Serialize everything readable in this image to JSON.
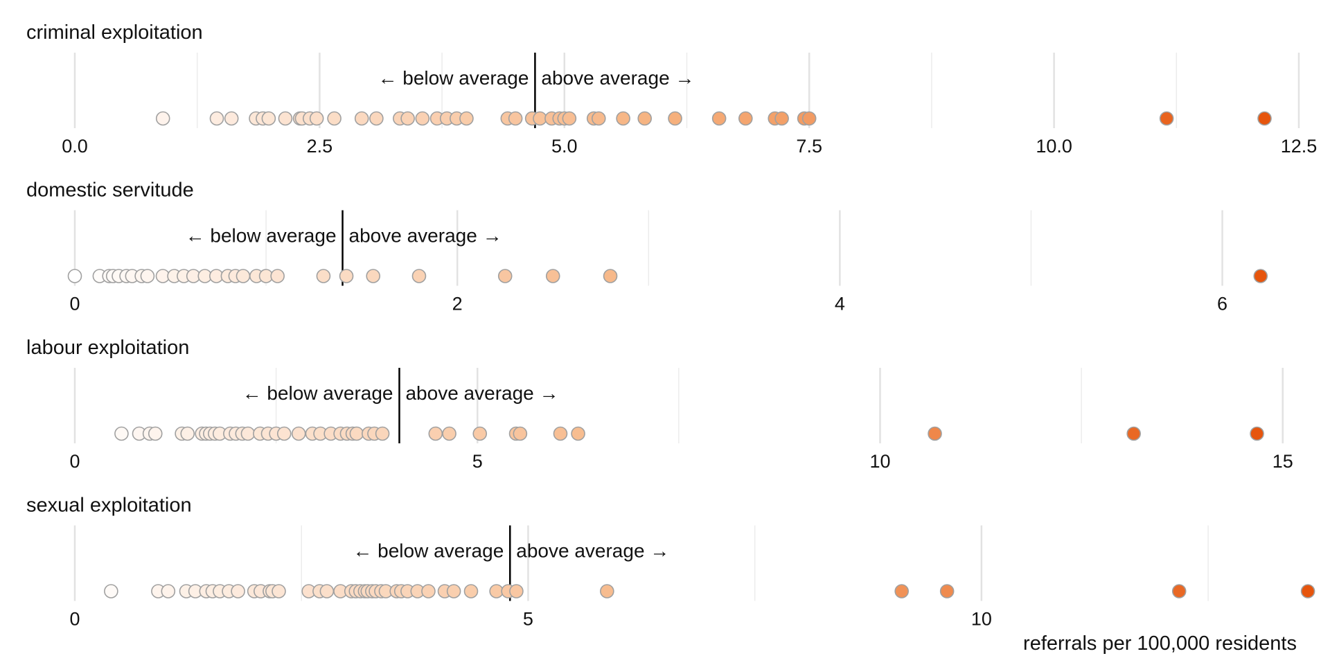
{
  "chart_data": {
    "type": "scatter",
    "orientation": "horizontal strip (dot) plots, one per exploitation type",
    "xlabel": "referrals per 100,000 residents",
    "below_label": "← below average",
    "above_label": "above average →",
    "color_scale": {
      "low": "#ffffff",
      "mid": "#f6b17d",
      "high": "#e6550d"
    },
    "marker_edge_color": "#a0a0a0",
    "grid": true,
    "panels": [
      {
        "title": "criminal exploitation",
        "xlim": [
          0,
          12.5
        ],
        "major_ticks": [
          0,
          2.5,
          5,
          7.5,
          10,
          12.5
        ],
        "tick_labels": [
          "0.0",
          "2.5",
          "5.0",
          "7.5",
          "10.0",
          "12.5"
        ],
        "minor_ticks": [
          1.25,
          3.75,
          6.25,
          8.75,
          11.25
        ],
        "average": 4.7,
        "values": [
          0.9,
          1.45,
          1.6,
          1.85,
          1.92,
          1.98,
          2.15,
          2.3,
          2.32,
          2.4,
          2.47,
          2.65,
          2.93,
          3.08,
          3.32,
          3.4,
          3.55,
          3.7,
          3.8,
          3.9,
          4.0,
          4.42,
          4.5,
          4.67,
          4.75,
          4.87,
          4.95,
          5.0,
          5.05,
          5.3,
          5.35,
          5.6,
          5.82,
          6.13,
          6.58,
          6.85,
          7.15,
          7.22,
          7.45,
          7.5,
          11.15,
          12.15
        ]
      },
      {
        "title": "domestic servitude",
        "xlim": [
          0,
          6.4
        ],
        "major_ticks": [
          0,
          2,
          4,
          6
        ],
        "tick_labels": [
          "0",
          "2",
          "4",
          "6"
        ],
        "minor_ticks": [
          1,
          3,
          5
        ],
        "average": 1.4,
        "values": [
          0.0,
          0.13,
          0.18,
          0.2,
          0.23,
          0.27,
          0.3,
          0.35,
          0.38,
          0.46,
          0.52,
          0.57,
          0.62,
          0.68,
          0.74,
          0.8,
          0.84,
          0.88,
          0.95,
          1.0,
          1.06,
          1.3,
          1.42,
          1.56,
          1.8,
          2.25,
          2.5,
          2.8,
          6.2
        ]
      },
      {
        "title": "labour exploitation",
        "xlim": [
          0,
          15.2
        ],
        "major_ticks": [
          0,
          5,
          10,
          15
        ],
        "tick_labels": [
          "0",
          "5",
          "10",
          "15"
        ],
        "minor_ticks": [
          2.5,
          7.5,
          12.5
        ],
        "average": 4.03,
        "values": [
          0.58,
          0.8,
          0.93,
          1.0,
          1.33,
          1.4,
          1.58,
          1.63,
          1.68,
          1.74,
          1.8,
          1.93,
          2.0,
          2.08,
          2.15,
          2.3,
          2.4,
          2.5,
          2.6,
          2.78,
          2.95,
          3.05,
          3.18,
          3.3,
          3.38,
          3.45,
          3.5,
          3.65,
          3.72,
          3.82,
          4.48,
          4.65,
          5.03,
          5.48,
          5.53,
          6.03,
          6.25,
          10.68,
          13.15,
          14.68
        ]
      },
      {
        "title": "sexual exploitation",
        "xlim": [
          0,
          13.5
        ],
        "major_ticks": [
          0,
          5,
          10
        ],
        "tick_labels": [
          "0",
          "5",
          "10"
        ],
        "minor_ticks": [
          2.5,
          7.5,
          12.5
        ],
        "average": 4.8,
        "values": [
          0.4,
          0.92,
          1.03,
          1.23,
          1.33,
          1.45,
          1.52,
          1.6,
          1.7,
          1.8,
          1.98,
          2.05,
          2.15,
          2.18,
          2.25,
          2.58,
          2.7,
          2.78,
          2.93,
          3.05,
          3.1,
          3.15,
          3.2,
          3.23,
          3.28,
          3.32,
          3.38,
          3.43,
          3.55,
          3.6,
          3.67,
          3.78,
          3.9,
          4.08,
          4.18,
          4.37,
          4.65,
          4.78,
          4.87,
          5.87,
          9.12,
          9.62,
          12.18,
          13.6
        ]
      }
    ]
  }
}
